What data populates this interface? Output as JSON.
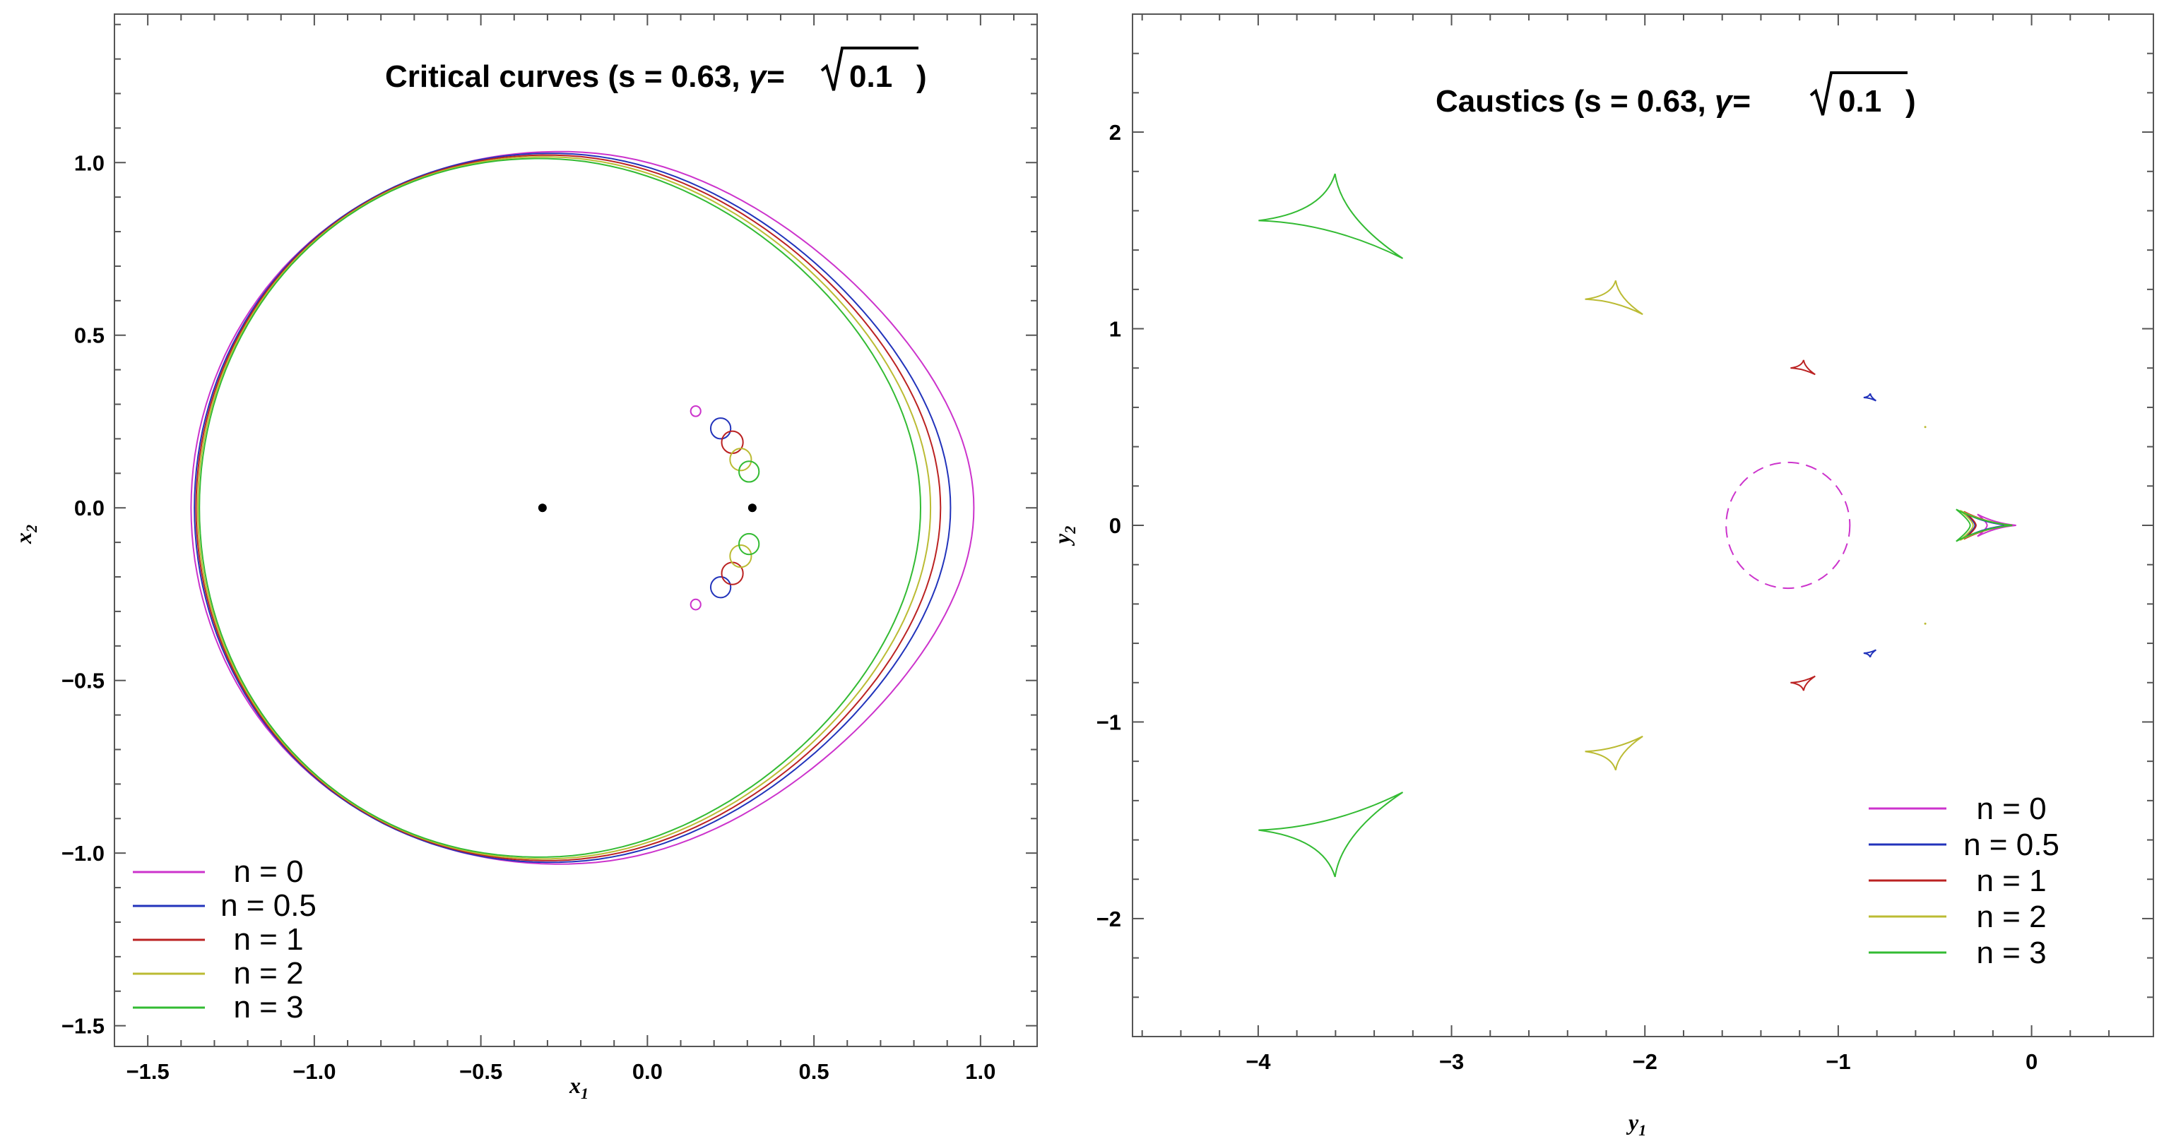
{
  "colors": {
    "n0": "#cc33cc",
    "n0.5": "#2233bb",
    "n1": "#bb2222",
    "n2": "#bbbb33",
    "n3": "#33bb33"
  },
  "chart_data": [
    {
      "type": "line",
      "title_prefix": "Critical curves (s = 0.63, ",
      "gamma_label": "γ=",
      "sqrt_arg": "0.1",
      "title_suffix": " )",
      "xlabel": "x",
      "xlabel_sub": "1",
      "ylabel": "x",
      "ylabel_sub": "2",
      "xlim": [
        -1.6,
        1.17
      ],
      "ylim": [
        -1.56,
        1.43
      ],
      "xticks": [
        -1.5,
        -1.0,
        -0.5,
        0.0,
        0.5,
        1.0
      ],
      "xtick_labels": [
        "−1.5",
        "−1.0",
        "−0.5",
        "0.0",
        "0.5",
        "1.0"
      ],
      "yticks": [
        1.0,
        0.5,
        0.0,
        -0.5,
        -1.0,
        -1.5
      ],
      "ytick_labels": [
        "1.0",
        "0.5",
        "0.0",
        "−0.5",
        "−1.0",
        "−1.5"
      ],
      "lens_points": [
        [
          -0.315,
          0.0
        ],
        [
          0.315,
          0.0
        ]
      ],
      "legend_position": "bottom-left",
      "series": [
        {
          "name": "n = 0",
          "color_key": "n0",
          "outer": {
            "left": -1.37,
            "right": 0.98,
            "top": 1.03,
            "bulge": 0.18
          },
          "small_circles": [
            [
              0.145,
              0.28,
              0.015
            ]
          ]
        },
        {
          "name": "n = 0.5",
          "color_key": "n0.5",
          "outer": {
            "left": -1.36,
            "right": 0.91,
            "top": 1.025,
            "bulge": 0.15
          },
          "small_circles": [
            [
              0.22,
              0.23,
              0.03
            ]
          ]
        },
        {
          "name": "n = 1",
          "color_key": "n1",
          "outer": {
            "left": -1.355,
            "right": 0.88,
            "top": 1.02,
            "bulge": 0.13
          },
          "small_circles": [
            [
              0.255,
              0.19,
              0.032
            ]
          ]
        },
        {
          "name": "n = 2",
          "color_key": "n2",
          "outer": {
            "left": -1.35,
            "right": 0.85,
            "top": 1.015,
            "bulge": 0.11
          },
          "small_circles": [
            [
              0.28,
              0.14,
              0.032
            ]
          ]
        },
        {
          "name": "n = 3",
          "color_key": "n3",
          "outer": {
            "left": -1.345,
            "right": 0.82,
            "top": 1.01,
            "bulge": 0.09
          },
          "small_circles": [
            [
              0.305,
              0.105,
              0.03
            ]
          ]
        }
      ]
    },
    {
      "type": "line",
      "title_prefix": "Caustics (s = 0.63, ",
      "gamma_label": "γ=",
      "sqrt_arg": "0.1",
      "title_suffix": " )",
      "xlabel": "y",
      "xlabel_sub": "1",
      "ylabel": "y",
      "ylabel_sub": "2",
      "xlim": [
        -4.65,
        0.63
      ],
      "ylim": [
        -2.6,
        2.6
      ],
      "xticks": [
        -4,
        -3,
        -2,
        -1,
        0
      ],
      "xtick_labels": [
        "−4",
        "−3",
        "−2",
        "−1",
        "0"
      ],
      "yticks": [
        2,
        1,
        0,
        -1,
        -2
      ],
      "ytick_labels": [
        "2",
        "1",
        "0",
        "−1",
        "−2"
      ],
      "legend_position": "bottom-right",
      "series": [
        {
          "name": "n = 0",
          "color_key": "n0",
          "dashed_circle": {
            "cx": -1.26,
            "cy": 0.0,
            "r": 0.32
          },
          "cusp_tip": [
            -0.08,
            0.0
          ],
          "cusp_size": 0.2
        },
        {
          "name": "n = 0.5",
          "color_key": "n0.5",
          "triangles": [
            {
              "cx": -0.83,
              "cy": 0.65,
              "size": 0.03
            }
          ],
          "cusp_tip": [
            -0.12,
            0.0
          ],
          "cusp_size": 0.23
        },
        {
          "name": "n = 1",
          "color_key": "n1",
          "triangles": [
            {
              "cx": -1.17,
              "cy": 0.8,
              "size": 0.06
            }
          ],
          "cusp_tip": [
            -0.1,
            0.0
          ],
          "cusp_size": 0.25
        },
        {
          "name": "n = 2",
          "color_key": "n2",
          "triangles": [
            {
              "cx": -2.13,
              "cy": 1.15,
              "size": 0.14
            }
          ],
          "cusp_tip": [
            -0.1,
            0.0
          ],
          "cusp_size": 0.27
        },
        {
          "name": "n = 3",
          "color_key": "n3",
          "triangles": [
            {
              "cx": -3.55,
              "cy": 1.55,
              "size": 0.35
            }
          ],
          "cusp_tip": [
            -0.1,
            0.0
          ],
          "cusp_size": 0.29
        }
      ]
    }
  ]
}
